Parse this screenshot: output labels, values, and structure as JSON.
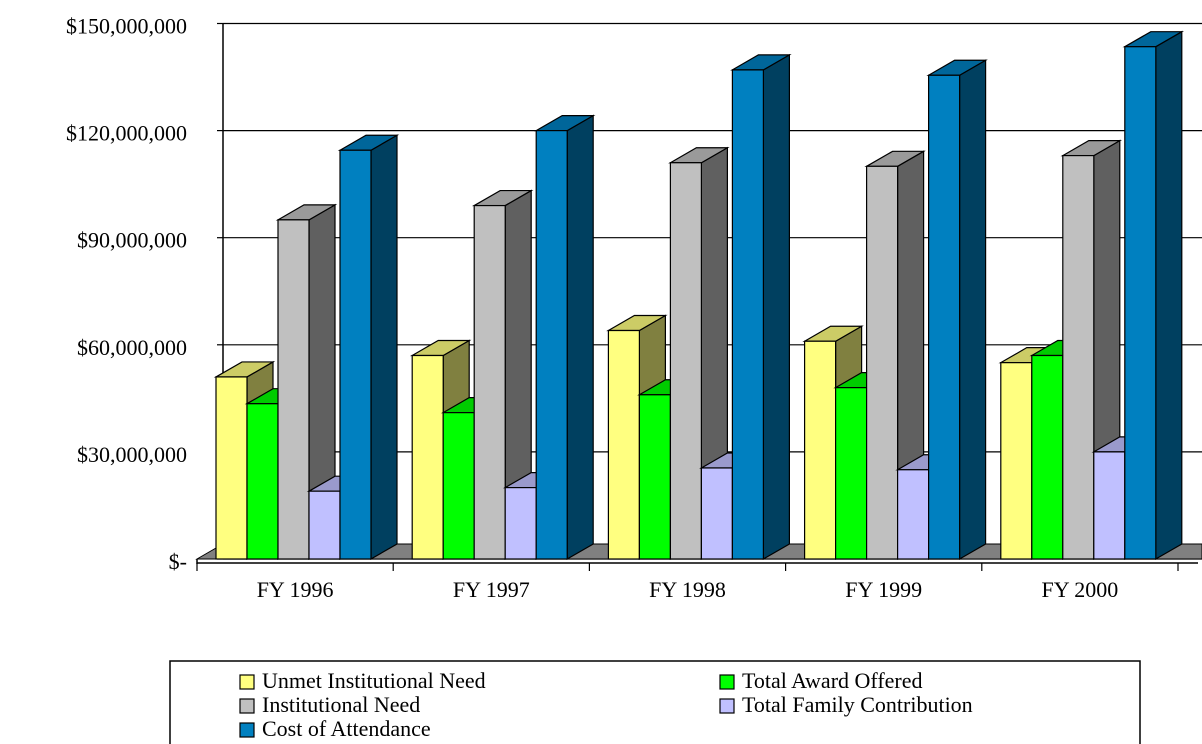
{
  "chart_data": {
    "type": "bar3d",
    "categories": [
      "FY 1996",
      "FY 1997",
      "FY 1998",
      "FY 1999",
      "FY 2000"
    ],
    "series": [
      {
        "name": "Unmet Institutional Need",
        "color": "#ffff80",
        "values": [
          51000000,
          57000000,
          64000000,
          61000000,
          55000000
        ]
      },
      {
        "name": "Total Award Offered",
        "color": "#00ff00",
        "values": [
          43500000,
          41000000,
          46000000,
          48000000,
          57000000
        ]
      },
      {
        "name": "Institutional Need",
        "color": "#c0c0c0",
        "values": [
          95000000,
          99000000,
          111000000,
          110000000,
          113000000
        ]
      },
      {
        "name": "Total Family Contribution",
        "color": "#c0c0ff",
        "values": [
          19000000,
          20000000,
          25500000,
          25000000,
          30000000
        ]
      },
      {
        "name": "Cost of Attendance",
        "color": "#0080c0",
        "values": [
          114500000,
          120000000,
          137000000,
          135500000,
          143500000
        ]
      }
    ],
    "ylim": [
      0,
      150000000
    ],
    "yticks": [
      {
        "value": 0,
        "label": "$-"
      },
      {
        "value": 30000000,
        "label": "$30,000,000"
      },
      {
        "value": 60000000,
        "label": "$60,000,000"
      },
      {
        "value": 90000000,
        "label": "$90,000,000"
      },
      {
        "value": 120000000,
        "label": "$120,000,000"
      },
      {
        "value": 150000000,
        "label": "$150,000,000"
      }
    ],
    "grid": true
  }
}
